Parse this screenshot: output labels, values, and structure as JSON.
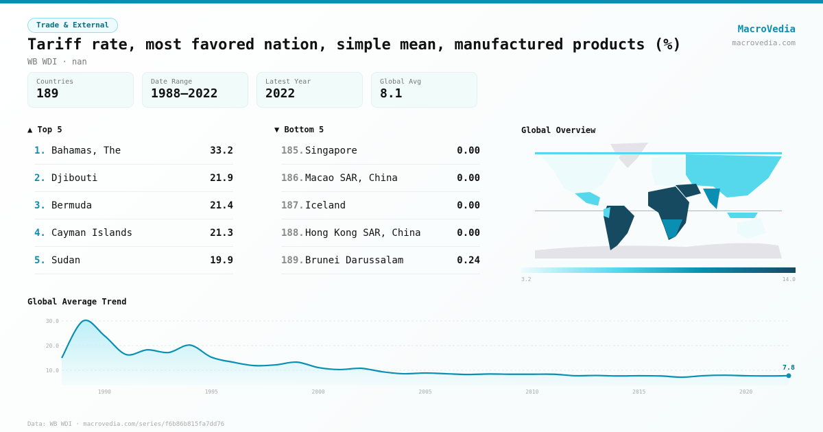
{
  "header": {
    "category": "Trade & External",
    "title": "Tariff rate, most favored nation, simple mean, manufactured products (%)",
    "subtitle": "WB WDI · nan",
    "brand": "MacroVedia",
    "brand_url": "macrovedia.com"
  },
  "stats": [
    {
      "label": "Countries",
      "value": "189"
    },
    {
      "label": "Date Range",
      "value": "1988–2022"
    },
    {
      "label": "Latest Year",
      "value": "2022"
    },
    {
      "label": "Global Avg",
      "value": "8.1"
    }
  ],
  "top5": {
    "title": "▲ Top 5",
    "items": [
      {
        "rank": "1.",
        "name": "Bahamas, The",
        "value": "33.2"
      },
      {
        "rank": "2.",
        "name": "Djibouti",
        "value": "21.9"
      },
      {
        "rank": "3.",
        "name": "Bermuda",
        "value": "21.4"
      },
      {
        "rank": "4.",
        "name": "Cayman Islands",
        "value": "21.3"
      },
      {
        "rank": "5.",
        "name": "Sudan",
        "value": "19.9"
      }
    ]
  },
  "bottom5": {
    "title": "▼ Bottom 5",
    "items": [
      {
        "rank": "185.",
        "name": "Singapore",
        "value": "0.00"
      },
      {
        "rank": "186.",
        "name": "Macao SAR, China",
        "value": "0.00"
      },
      {
        "rank": "187.",
        "name": "Iceland",
        "value": "0.00"
      },
      {
        "rank": "188.",
        "name": "Hong Kong SAR, China",
        "value": "0.00"
      },
      {
        "rank": "189.",
        "name": "Brunei Darussalam",
        "value": "0.24"
      }
    ]
  },
  "map": {
    "title": "Global Overview",
    "legend_min": "3.2",
    "legend_max": "14.0",
    "colors": [
      "#eefbfd",
      "#55d8ec",
      "#0a8fb2",
      "#164a60"
    ]
  },
  "colors": {
    "accent": "#0a8fb2",
    "rank_top": "#0a8fb2",
    "rank_bottom": "#888888"
  },
  "chart_data": {
    "type": "area",
    "title": "Global Average Trend",
    "x": [
      1988,
      1989,
      1990,
      1991,
      1992,
      1993,
      1994,
      1995,
      1996,
      1997,
      1998,
      1999,
      2000,
      2001,
      2002,
      2003,
      2004,
      2005,
      2006,
      2007,
      2008,
      2009,
      2010,
      2011,
      2012,
      2013,
      2014,
      2015,
      2016,
      2017,
      2018,
      2019,
      2020,
      2021,
      2022
    ],
    "values": [
      15.0,
      30.0,
      24.0,
      16.4,
      18.3,
      17.2,
      20.2,
      15.3,
      13.3,
      11.9,
      12.2,
      13.3,
      11.1,
      10.3,
      10.8,
      9.4,
      8.6,
      8.9,
      8.6,
      8.3,
      8.5,
      8.4,
      8.4,
      8.4,
      7.8,
      7.9,
      7.7,
      7.8,
      7.7,
      7.2,
      7.8,
      8.0,
      7.8,
      7.7,
      7.8
    ],
    "yticks": [
      "10.0",
      "20.0",
      "30.0"
    ],
    "xticks": [
      "1990",
      "1995",
      "2000",
      "2005",
      "2010",
      "2015",
      "2020"
    ],
    "ylim": [
      4.4,
      30
    ],
    "last_label": "7.8",
    "grid": true
  },
  "footer": "Data: WB WDI · macrovedia.com/series/f6b86b815fa7dd76"
}
